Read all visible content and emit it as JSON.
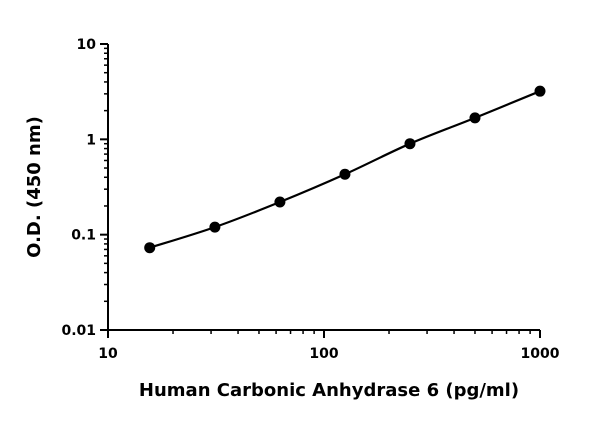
{
  "chart_data": {
    "type": "scatter",
    "title": "",
    "xlabel": "Human Carbonic Anhydrase 6 (pg/ml)",
    "ylabel": "O.D. (450 nm)",
    "xscale": "log",
    "yscale": "log",
    "xlim": [
      10,
      1000
    ],
    "ylim": [
      0.01,
      10
    ],
    "x_ticks": [
      10,
      100,
      1000
    ],
    "x_tick_labels": [
      "10",
      "100",
      "1000"
    ],
    "y_ticks": [
      0.01,
      0.1,
      1,
      10
    ],
    "y_tick_labels": [
      "0.01",
      "0.1",
      "1",
      "10"
    ],
    "grid": false,
    "legend": "none",
    "series": [
      {
        "x": [
          15.6,
          31.25,
          62.5,
          125,
          250,
          500,
          1000
        ],
        "y": [
          0.073,
          0.12,
          0.22,
          0.43,
          0.9,
          1.68,
          3.2
        ],
        "marker": "circle",
        "fit_curve": true,
        "color": "#000000"
      }
    ]
  }
}
